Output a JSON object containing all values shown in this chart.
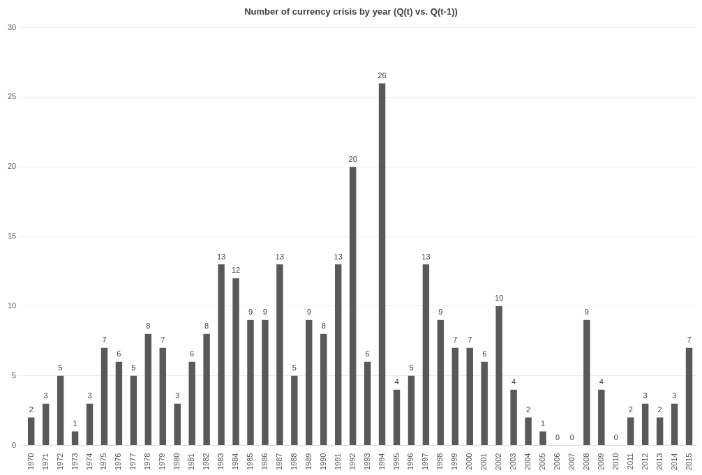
{
  "chart_data": {
    "type": "bar",
    "title": "Number of currency crisis by year (Q(t) vs. Q(t-1))",
    "categories": [
      "1970",
      "1971",
      "1972",
      "1973",
      "1974",
      "1975",
      "1976",
      "1977",
      "1978",
      "1979",
      "1980",
      "1981",
      "1982",
      "1983",
      "1984",
      "1985",
      "1986",
      "1987",
      "1988",
      "1989",
      "1990",
      "1991",
      "1992",
      "1993",
      "1994",
      "1995",
      "1996",
      "1997",
      "1998",
      "1999",
      "2000",
      "2001",
      "2002",
      "2003",
      "2004",
      "2005",
      "2006",
      "2007",
      "2008",
      "2009",
      "2010",
      "2011",
      "2012",
      "2013",
      "2014",
      "2015"
    ],
    "values": [
      2,
      3,
      5,
      1,
      3,
      7,
      6,
      5,
      8,
      7,
      3,
      6,
      8,
      13,
      12,
      9,
      9,
      13,
      5,
      9,
      8,
      13,
      20,
      6,
      26,
      4,
      5,
      13,
      9,
      7,
      7,
      6,
      10,
      4,
      2,
      1,
      0,
      0,
      9,
      4,
      0,
      2,
      3,
      2,
      3,
      7
    ],
    "color": "#595959",
    "ylim": [
      0,
      30
    ],
    "yticks": [
      0,
      5,
      10,
      15,
      20,
      25,
      30
    ],
    "grid": "y",
    "legend": false,
    "data_labels": true
  }
}
